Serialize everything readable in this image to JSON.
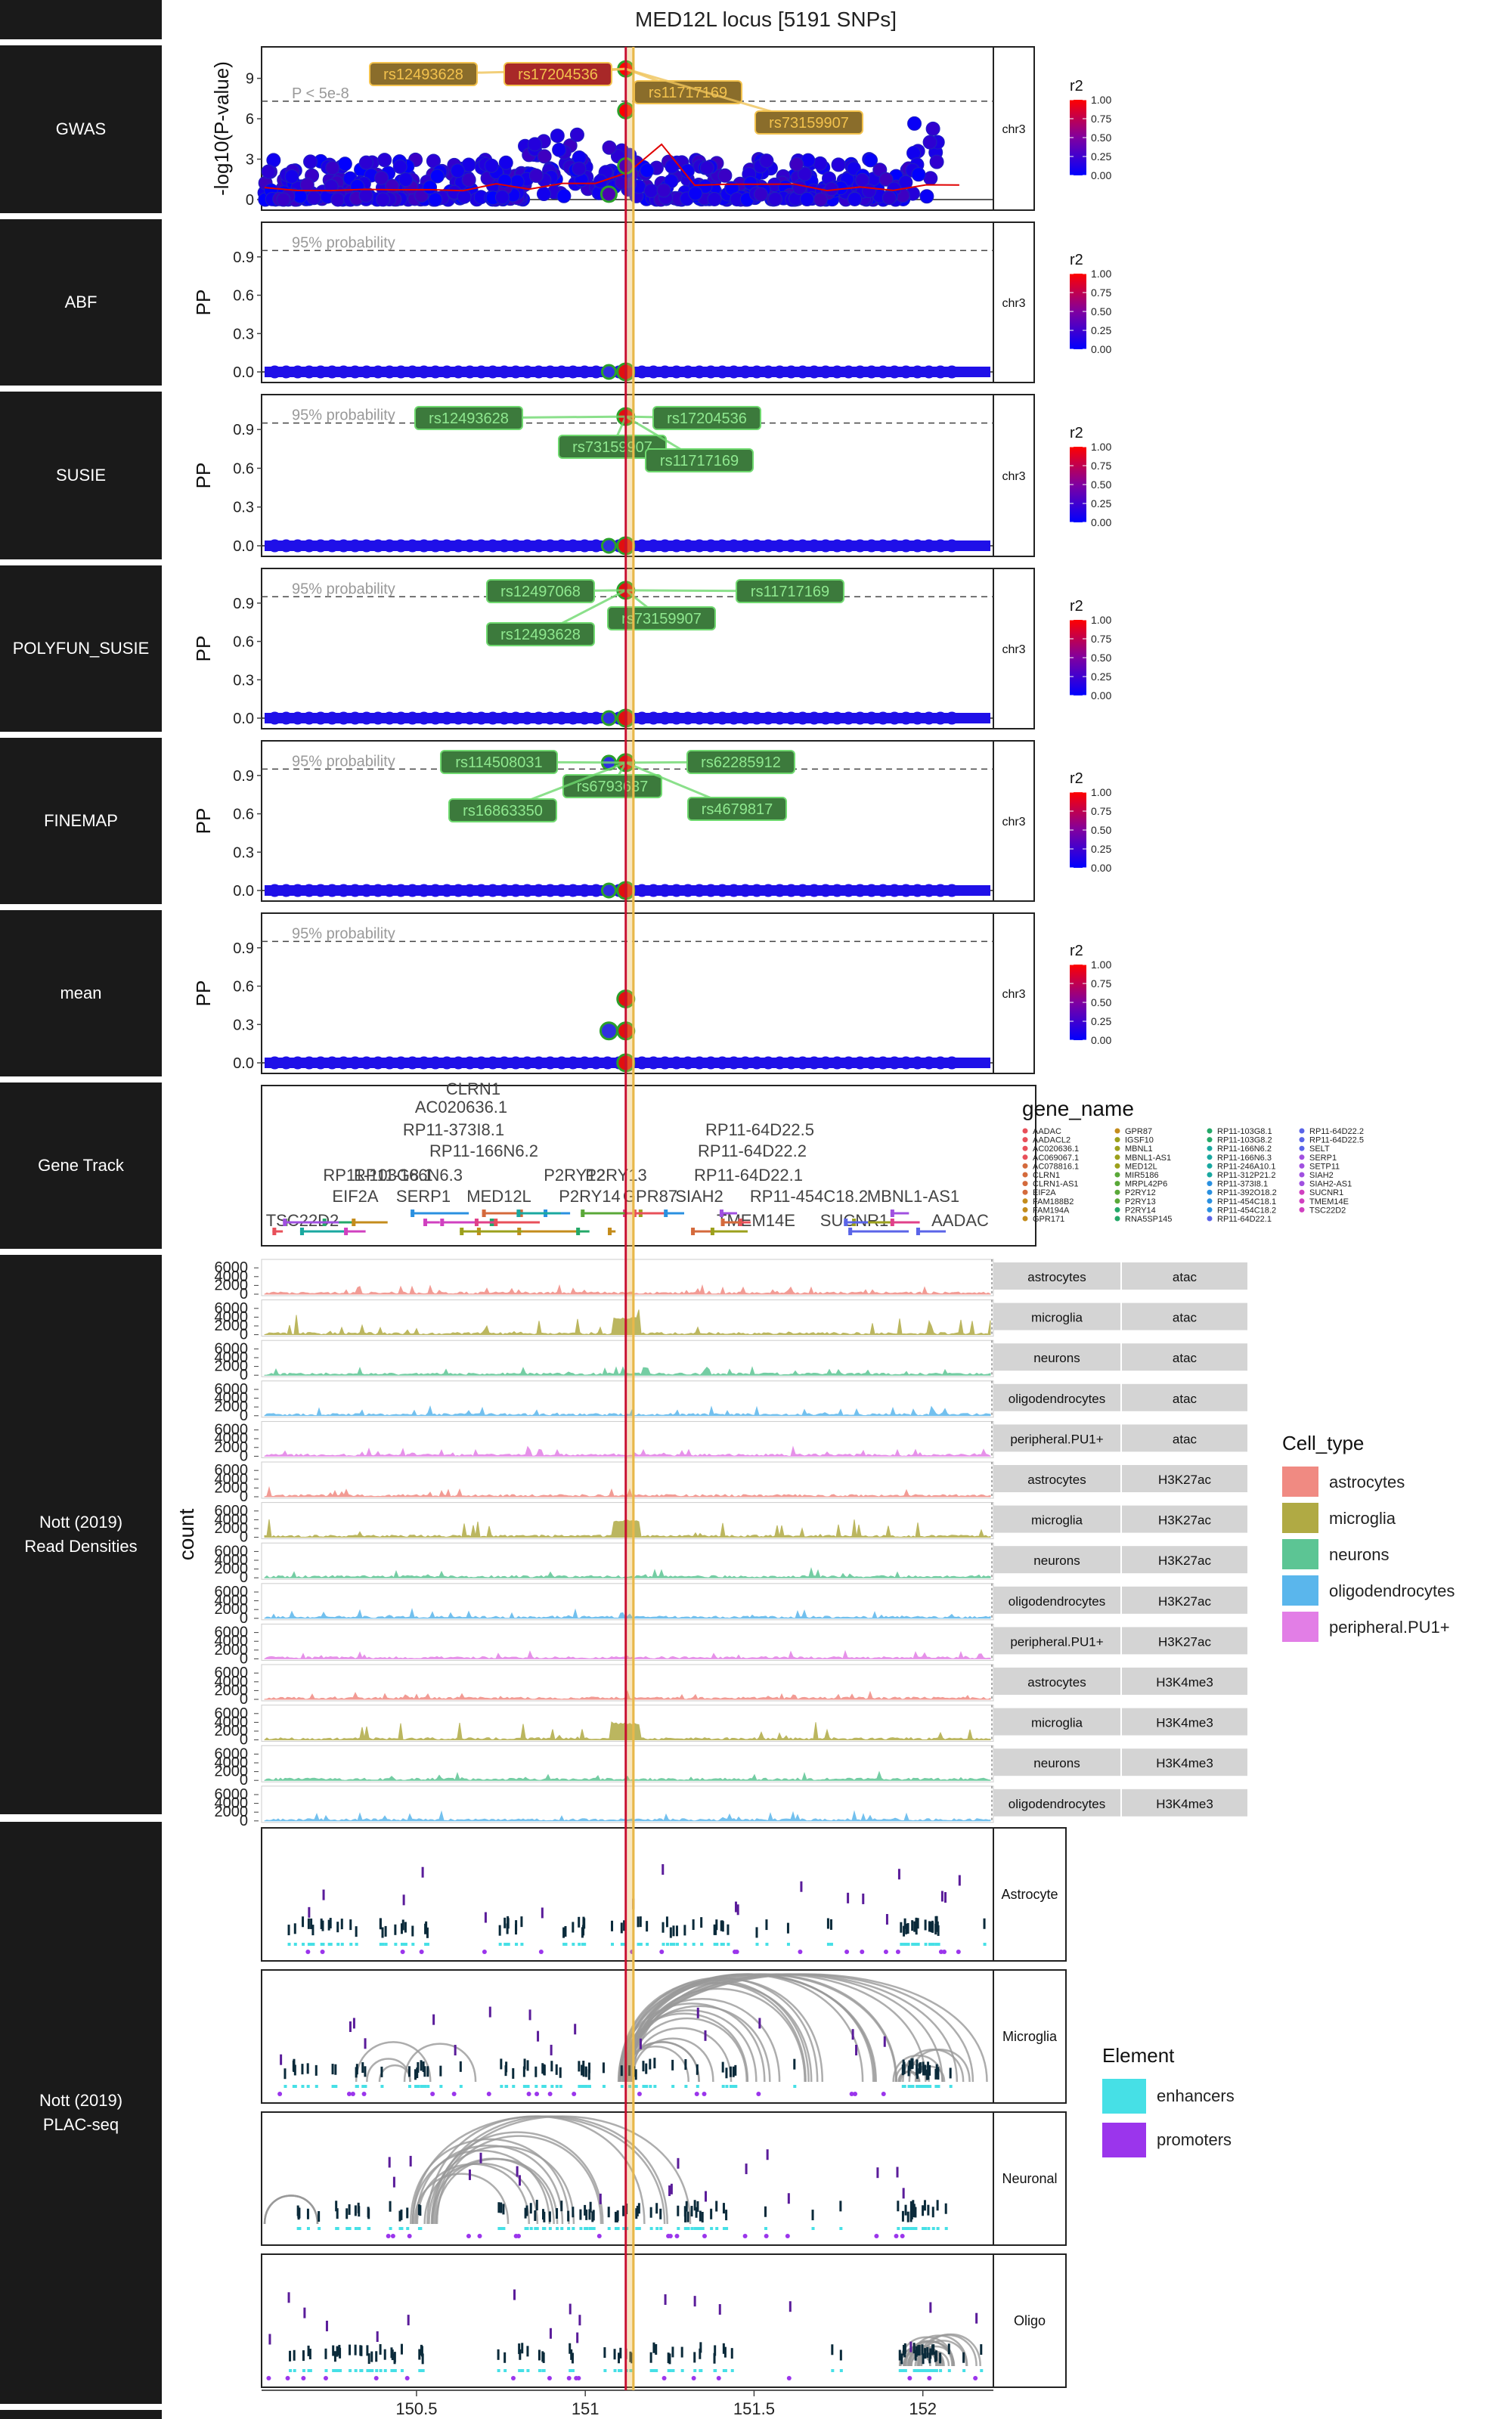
{
  "page": {
    "title": "MED12L locus [5191 SNPs]"
  },
  "rows": [
    {
      "id": "gwas",
      "label": "GWAS"
    },
    {
      "id": "abf",
      "label": "ABF"
    },
    {
      "id": "susie",
      "label": "SUSIE"
    },
    {
      "id": "polyfun",
      "label": "POLYFUN_SUSIE"
    },
    {
      "id": "finemap",
      "label": "FINEMAP"
    },
    {
      "id": "mean",
      "label": "mean"
    },
    {
      "id": "genes",
      "label": "Gene Track"
    },
    {
      "id": "reads",
      "label": "Nott (2019)\nRead Densities"
    },
    {
      "id": "plac",
      "label": "Nott (2019)\nPLAC-seq"
    }
  ],
  "chart_data": [
    {
      "type": "scatter",
      "panel": "GWAS",
      "facet": "chr3",
      "ylabel": "-log10(P-value)",
      "yticks": [
        0,
        3,
        6,
        9
      ],
      "ylim": [
        -0.5,
        11
      ],
      "threshold": {
        "value": 7.3,
        "label": "P < 5e-8"
      },
      "labels": [
        "rs12493628",
        "rs17204536",
        "rs11717169",
        "rs73159907"
      ],
      "lead_snps": [
        {
          "x": 151.12,
          "y": 9.7
        },
        {
          "x": 151.12,
          "y": 6.6
        },
        {
          "x": 151.12,
          "y": 2.5
        },
        {
          "x": 151.07,
          "y": 0.4
        }
      ],
      "colorbar": {
        "title": "r2",
        "ticks": [
          "1.00",
          "0.75",
          "0.50",
          "0.25",
          "0.00"
        ]
      }
    },
    {
      "type": "scatter",
      "panel": "ABF",
      "facet": "chr3",
      "ylabel": "PP",
      "yticks": [
        "0.0",
        "0.3",
        "0.6",
        "0.9"
      ],
      "threshold": {
        "value": 0.95,
        "label": "95% probability"
      },
      "labels": [],
      "colorbar": {
        "title": "r2",
        "ticks": [
          "1.00",
          "0.75",
          "0.50",
          "0.25",
          "0.00"
        ]
      }
    },
    {
      "type": "scatter",
      "panel": "SUSIE",
      "facet": "chr3",
      "ylabel": "PP",
      "yticks": [
        "0.0",
        "0.3",
        "0.6",
        "0.9"
      ],
      "threshold": {
        "value": 0.95,
        "label": "95% probability"
      },
      "labels": [
        "rs12493628",
        "rs17204536",
        "rs73159907",
        "rs11717169"
      ],
      "colorbar": {
        "title": "r2",
        "ticks": [
          "1.00",
          "0.75",
          "0.50",
          "0.25",
          "0.00"
        ]
      }
    },
    {
      "type": "scatter",
      "panel": "POLYFUN_SUSIE",
      "facet": "chr3",
      "ylabel": "PP",
      "yticks": [
        "0.0",
        "0.3",
        "0.6",
        "0.9"
      ],
      "threshold": {
        "value": 0.95,
        "label": "95% probability"
      },
      "labels": [
        "rs12497068",
        "rs11717169",
        "rs12493628",
        "rs73159907"
      ],
      "colorbar": {
        "title": "r2",
        "ticks": [
          "1.00",
          "0.75",
          "0.50",
          "0.25",
          "0.00"
        ]
      }
    },
    {
      "type": "scatter",
      "panel": "FINEMAP",
      "facet": "chr3",
      "ylabel": "PP",
      "yticks": [
        "0.0",
        "0.3",
        "0.6",
        "0.9"
      ],
      "threshold": {
        "value": 0.95,
        "label": "95% probability"
      },
      "labels": [
        "rs114508031",
        "rs62285912",
        "rs6793637",
        "rs16863350",
        "rs4679817"
      ],
      "colorbar": {
        "title": "r2",
        "ticks": [
          "1.00",
          "0.75",
          "0.50",
          "0.25",
          "0.00"
        ]
      }
    },
    {
      "type": "scatter",
      "panel": "mean",
      "facet": "chr3",
      "ylabel": "PP",
      "yticks": [
        "0.0",
        "0.3",
        "0.6",
        "0.9"
      ],
      "threshold": {
        "value": 0.95,
        "label": "95% probability"
      },
      "labels": [],
      "points": [
        {
          "x": 151.12,
          "y": 0.5
        },
        {
          "x": 151.12,
          "y": 0.25
        },
        {
          "x": 151.07,
          "y": 0.25
        },
        {
          "x": 151.12,
          "y": 0.0
        }
      ],
      "colorbar": {
        "title": "r2",
        "ticks": [
          "1.00",
          "0.75",
          "0.50",
          "0.25",
          "0.00"
        ]
      }
    },
    {
      "type": "gene_track",
      "panel": "Gene Track",
      "gene_labels": [
        "CLRN1",
        "AC020636.1",
        "RP11-373I8.1",
        "RP11-166N6.2",
        "RP11-166N6.3",
        "RP11-103G8.1",
        "P2RY12",
        "P2RY13",
        "RP11-64D22.5",
        "RP11-64D22.2",
        "RP11-64D22.1",
        "RP11-454C18.2",
        "MBNL1-AS1",
        "TSC22D2",
        "GPR87",
        "P2RY14",
        "MED12L",
        "SERP1",
        "EIF2A",
        "SIAH2",
        "AADAC",
        "TMEM14E",
        "SUCNR1"
      ],
      "legend": {
        "title": "gene_name",
        "entries": [
          "AADAC",
          "AADACL2",
          "AC020636.1",
          "AC069067.1",
          "AC078816.1",
          "CLRN1",
          "CLRN1-AS1",
          "EIF2A",
          "FAM188B2",
          "FAM194A",
          "GPR171",
          "GPR87",
          "IGSF10",
          "MBNL1",
          "MBNL1-AS1",
          "MED12L",
          "MIR5186",
          "MRPL42P6",
          "P2RY12",
          "P2RY13",
          "P2RY14",
          "RNA5SP145",
          "RP11-103G8.1",
          "RP11-103G8.2",
          "RP11-166N6.2",
          "RP11-166N6.3",
          "RP11-246A10.1",
          "RP11-312P21.2",
          "RP11-373I8.1",
          "RP11-392O18.2",
          "RP11-454C18.1",
          "RP11-454C18.2",
          "RP11-64D22.1",
          "RP11-64D22.2",
          "RP11-64D22.5",
          "SELT",
          "SERP1",
          "SETP11",
          "SIAH2",
          "SIAH2-AS1",
          "SUCNR1",
          "TMEM14E",
          "TSC22D2"
        ]
      }
    },
    {
      "type": "area",
      "panel": "Nott (2019) Read Densities",
      "ylabel": "count",
      "yticks": [
        "0",
        "2000",
        "4000",
        "6000"
      ],
      "tracks": [
        {
          "cell": "astrocytes",
          "assay": "atac"
        },
        {
          "cell": "microglia",
          "assay": "atac"
        },
        {
          "cell": "neurons",
          "assay": "atac"
        },
        {
          "cell": "oligodendrocytes",
          "assay": "atac"
        },
        {
          "cell": "peripheral.PU1+",
          "assay": "atac"
        },
        {
          "cell": "astrocytes",
          "assay": "H3K27ac"
        },
        {
          "cell": "microglia",
          "assay": "H3K27ac"
        },
        {
          "cell": "neurons",
          "assay": "H3K27ac"
        },
        {
          "cell": "oligodendrocytes",
          "assay": "H3K27ac"
        },
        {
          "cell": "peripheral.PU1+",
          "assay": "H3K27ac"
        },
        {
          "cell": "astrocytes",
          "assay": "H3K4me3"
        },
        {
          "cell": "microglia",
          "assay": "H3K4me3"
        },
        {
          "cell": "neurons",
          "assay": "H3K4me3"
        },
        {
          "cell": "oligodendrocytes",
          "assay": "H3K4me3"
        }
      ],
      "legend": {
        "title": "Cell_type",
        "entries": [
          {
            "name": "astrocytes",
            "color": "#f08a82"
          },
          {
            "name": "microglia",
            "color": "#b0aa44"
          },
          {
            "name": "neurons",
            "color": "#5cc594"
          },
          {
            "name": "oligodendrocytes",
            "color": "#5ab6ec"
          },
          {
            "name": "peripheral.PU1+",
            "color": "#e27ee6"
          }
        ]
      }
    },
    {
      "type": "arc",
      "panel": "Nott (2019) PLAC-seq",
      "facets": [
        "Astrocyte",
        "Microglia",
        "Neuronal",
        "Oligo"
      ],
      "legend": {
        "title": "Element",
        "entries": [
          {
            "name": "enhancers",
            "color": "#46e0e6"
          },
          {
            "name": "promoters",
            "color": "#9b35ec"
          }
        ]
      },
      "xaxis": {
        "ticks": [
          "150.5",
          "151",
          "151.5",
          "152"
        ],
        "range": [
          150.05,
          152.2
        ]
      }
    }
  ],
  "colors": {
    "lead_line_red": "#c8102e",
    "lead_line_gold": "#e8b84a",
    "label_fill": "#8a6d2b",
    "label_text": "#f3c24d"
  }
}
